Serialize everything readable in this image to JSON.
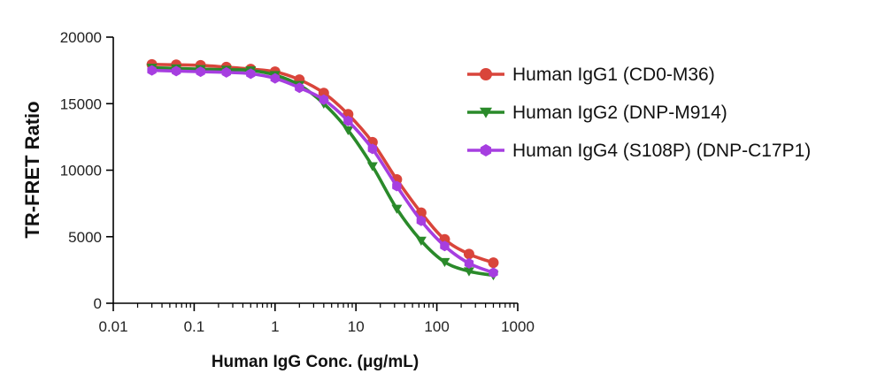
{
  "chart_data": {
    "type": "line",
    "xlabel": "Human IgG Conc. (μg/mL)",
    "ylabel": "TR-FRET Ratio",
    "xscale": "log",
    "xlim": [
      0.01,
      1000
    ],
    "ylim": [
      0,
      20000
    ],
    "xticks": [
      0.01,
      0.1,
      1,
      10,
      100,
      1000
    ],
    "xtick_labels": [
      "0.01",
      "0.1",
      "1",
      "10",
      "100",
      "1000"
    ],
    "yticks": [
      0,
      5000,
      10000,
      15000,
      20000
    ],
    "ytick_labels": [
      "0",
      "5000",
      "10000",
      "15000",
      "20000"
    ],
    "grid": false,
    "legend_position": "right",
    "x": [
      0.03,
      0.06,
      0.12,
      0.25,
      0.5,
      1,
      2,
      4,
      8,
      16,
      32,
      64,
      125,
      250,
      500
    ],
    "series": [
      {
        "name": "Human IgG1 (CD0-M36)",
        "color": "#d9453b",
        "marker": "circle",
        "values": [
          17950,
          17920,
          17880,
          17750,
          17600,
          17400,
          16800,
          15800,
          14200,
          12100,
          9300,
          6800,
          4800,
          3700,
          3050
        ]
      },
      {
        "name": "Human IgG2 (DNP-M914)",
        "color": "#2a8a2a",
        "marker": "triangle-down",
        "values": [
          17700,
          17650,
          17600,
          17550,
          17500,
          17150,
          16400,
          15000,
          13000,
          10300,
          7100,
          4700,
          3100,
          2400,
          2100
        ]
      },
      {
        "name": "Human IgG4 (S108P) (DNP-C17P1)",
        "color": "#a63ee0",
        "marker": "hexagon",
        "values": [
          17500,
          17450,
          17400,
          17350,
          17250,
          16900,
          16200,
          15300,
          13700,
          11600,
          8800,
          6200,
          4300,
          3000,
          2300
        ]
      }
    ]
  }
}
